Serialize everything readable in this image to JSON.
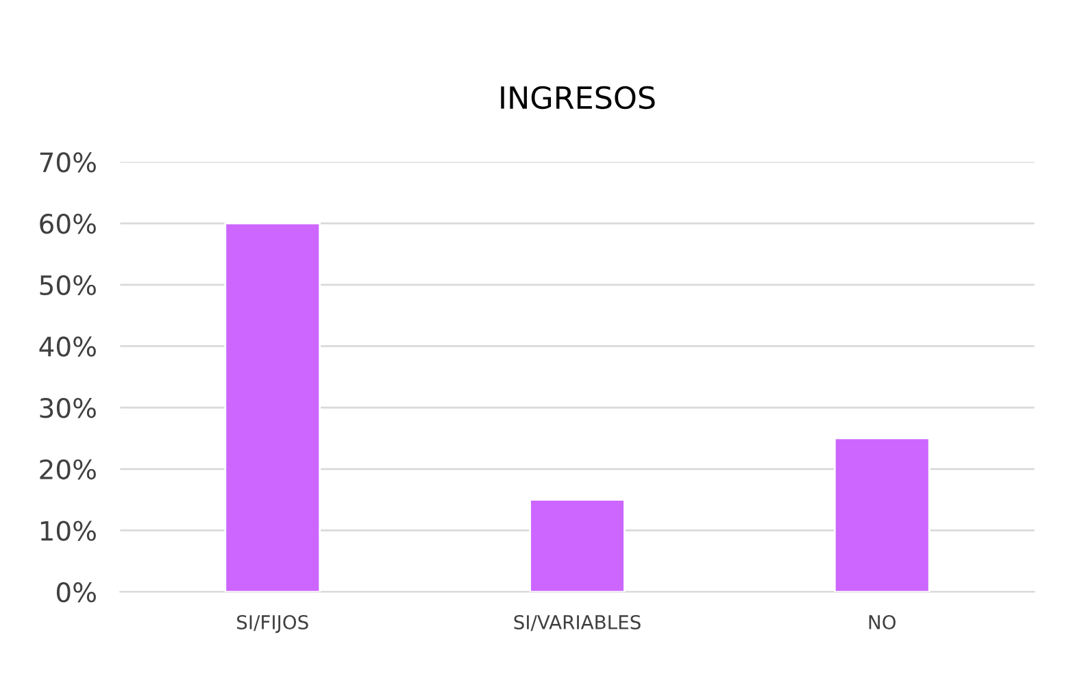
{
  "chart_data": {
    "type": "bar",
    "title": "INGRESOS",
    "categories": [
      "SI/FIJOS",
      "SI/VARIABLES",
      "NO"
    ],
    "series": [
      {
        "color": "#cc66ff",
        "values": [
          60,
          15,
          25
        ]
      }
    ],
    "ylim": [
      0,
      70
    ],
    "yticks": [
      {
        "value": 0,
        "label": "0%"
      },
      {
        "value": 10,
        "label": "10%"
      },
      {
        "value": 20,
        "label": "20%"
      },
      {
        "value": 30,
        "label": "30%"
      },
      {
        "value": 40,
        "label": "40%"
      },
      {
        "value": 50,
        "label": "50%"
      },
      {
        "value": 60,
        "label": "60%"
      },
      {
        "value": 70,
        "label": "70%"
      }
    ],
    "grid": "y"
  }
}
